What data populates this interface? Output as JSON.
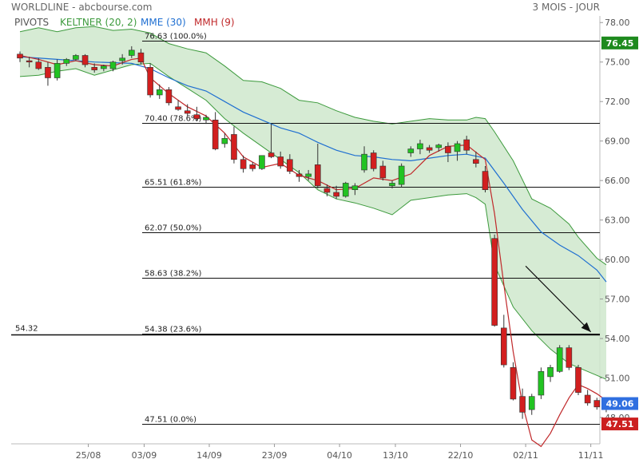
{
  "header": {
    "left_title": "WORLDLINE - abcbourse.com",
    "right_title": "3 MOIS - JOUR"
  },
  "legend": [
    {
      "label": "PIVOTS",
      "color": "#555555"
    },
    {
      "label": "KELTNER (20, 2)",
      "color": "#3c9a3c"
    },
    {
      "label": "MME (30)",
      "color": "#1f6fd1"
    },
    {
      "label": "MMH (9)",
      "color": "#c0282a"
    }
  ],
  "colors": {
    "up": "#22c322",
    "down": "#d21f1f",
    "keltner_fill": "#cfe8cc",
    "keltner_line": "#3c9a3c",
    "mme": "#1f6fd1",
    "mmh": "#c0282a",
    "current_price_bg": "#1e8a1e",
    "close_bg": "#2f6fe0",
    "low_bg": "#cc1f1f"
  },
  "chart_data": {
    "type": "candlestick",
    "y_range": [
      46.0,
      78.5
    ],
    "y_ticks": [
      "78.00",
      "75.00",
      "72.00",
      "69.00",
      "66.00",
      "63.00",
      "60.00",
      "57.00",
      "54.00",
      "51.00",
      "48.00"
    ],
    "x_labels": [
      "25/08",
      "03/09",
      "14/09",
      "23/09",
      "04/10",
      "13/10",
      "22/10",
      "02/11",
      "11/11"
    ],
    "candles": [
      {
        "o": 75.6,
        "h": 75.8,
        "l": 75.0,
        "c": 75.3
      },
      {
        "o": 75.1,
        "h": 75.4,
        "l": 74.6,
        "c": 75.0
      },
      {
        "o": 75.0,
        "h": 75.3,
        "l": 74.4,
        "c": 74.5
      },
      {
        "o": 74.6,
        "h": 75.0,
        "l": 73.2,
        "c": 73.8
      },
      {
        "o": 73.8,
        "h": 75.2,
        "l": 73.6,
        "c": 74.9
      },
      {
        "o": 74.9,
        "h": 75.3,
        "l": 74.7,
        "c": 75.2
      },
      {
        "o": 75.2,
        "h": 75.6,
        "l": 75.1,
        "c": 75.5
      },
      {
        "o": 75.5,
        "h": 75.6,
        "l": 74.6,
        "c": 74.8
      },
      {
        "o": 74.6,
        "h": 74.9,
        "l": 74.2,
        "c": 74.4
      },
      {
        "o": 74.5,
        "h": 74.8,
        "l": 74.3,
        "c": 74.7
      },
      {
        "o": 74.5,
        "h": 75.1,
        "l": 74.3,
        "c": 75.0
      },
      {
        "o": 75.1,
        "h": 75.6,
        "l": 74.8,
        "c": 75.3
      },
      {
        "o": 75.5,
        "h": 76.2,
        "l": 75.3,
        "c": 75.9
      },
      {
        "o": 75.7,
        "h": 76.0,
        "l": 74.8,
        "c": 75.0
      },
      {
        "o": 74.6,
        "h": 74.9,
        "l": 72.3,
        "c": 72.5
      },
      {
        "o": 72.5,
        "h": 73.3,
        "l": 72.2,
        "c": 72.9
      },
      {
        "o": 72.9,
        "h": 73.1,
        "l": 71.7,
        "c": 71.9
      },
      {
        "o": 71.6,
        "h": 72.1,
        "l": 71.3,
        "c": 71.4
      },
      {
        "o": 71.3,
        "h": 71.8,
        "l": 70.9,
        "c": 71.1
      },
      {
        "o": 71.0,
        "h": 71.6,
        "l": 70.5,
        "c": 70.7
      },
      {
        "o": 70.6,
        "h": 71.0,
        "l": 70.3,
        "c": 70.8
      },
      {
        "o": 70.6,
        "h": 71.2,
        "l": 68.3,
        "c": 68.4
      },
      {
        "o": 68.8,
        "h": 69.6,
        "l": 68.5,
        "c": 69.2
      },
      {
        "o": 69.5,
        "h": 70.1,
        "l": 67.3,
        "c": 67.6
      },
      {
        "o": 67.6,
        "h": 67.9,
        "l": 66.6,
        "c": 66.9
      },
      {
        "o": 67.2,
        "h": 67.4,
        "l": 66.7,
        "c": 66.9
      },
      {
        "o": 66.9,
        "h": 67.9,
        "l": 66.8,
        "c": 67.9
      },
      {
        "o": 68.1,
        "h": 70.3,
        "l": 67.7,
        "c": 67.8
      },
      {
        "o": 67.8,
        "h": 68.2,
        "l": 66.9,
        "c": 67.1
      },
      {
        "o": 67.6,
        "h": 68.0,
        "l": 66.5,
        "c": 66.7
      },
      {
        "o": 66.5,
        "h": 66.8,
        "l": 65.9,
        "c": 66.3
      },
      {
        "o": 66.3,
        "h": 66.8,
        "l": 66.0,
        "c": 66.5
      },
      {
        "o": 67.2,
        "h": 68.8,
        "l": 65.4,
        "c": 65.6
      },
      {
        "o": 65.4,
        "h": 65.7,
        "l": 64.8,
        "c": 65.1
      },
      {
        "o": 65.1,
        "h": 65.6,
        "l": 64.6,
        "c": 64.8
      },
      {
        "o": 64.8,
        "h": 65.9,
        "l": 64.7,
        "c": 65.8
      },
      {
        "o": 65.3,
        "h": 65.8,
        "l": 64.9,
        "c": 65.6
      },
      {
        "o": 66.8,
        "h": 68.6,
        "l": 66.6,
        "c": 68.0
      },
      {
        "o": 68.1,
        "h": 68.3,
        "l": 66.7,
        "c": 66.9
      },
      {
        "o": 67.1,
        "h": 67.5,
        "l": 66.0,
        "c": 66.2
      },
      {
        "o": 65.6,
        "h": 66.0,
        "l": 65.4,
        "c": 65.8
      },
      {
        "o": 65.7,
        "h": 67.3,
        "l": 65.5,
        "c": 67.1
      },
      {
        "o": 68.1,
        "h": 68.6,
        "l": 67.8,
        "c": 68.4
      },
      {
        "o": 68.4,
        "h": 69.1,
        "l": 68.0,
        "c": 68.8
      },
      {
        "o": 68.5,
        "h": 68.7,
        "l": 68.1,
        "c": 68.3
      },
      {
        "o": 68.5,
        "h": 68.8,
        "l": 68.2,
        "c": 68.7
      },
      {
        "o": 68.6,
        "h": 68.9,
        "l": 67.4,
        "c": 68.1
      },
      {
        "o": 68.2,
        "h": 69.0,
        "l": 67.5,
        "c": 68.8
      },
      {
        "o": 69.1,
        "h": 69.4,
        "l": 68.0,
        "c": 68.3
      },
      {
        "o": 67.6,
        "h": 68.2,
        "l": 67.0,
        "c": 67.3
      },
      {
        "o": 66.7,
        "h": 67.1,
        "l": 65.1,
        "c": 65.3
      },
      {
        "o": 61.6,
        "h": 61.9,
        "l": 54.9,
        "c": 55.0
      },
      {
        "o": 54.8,
        "h": 55.8,
        "l": 51.8,
        "c": 52.0
      },
      {
        "o": 51.8,
        "h": 52.2,
        "l": 49.3,
        "c": 49.4
      },
      {
        "o": 49.6,
        "h": 50.2,
        "l": 47.9,
        "c": 48.4
      },
      {
        "o": 48.6,
        "h": 49.8,
        "l": 48.2,
        "c": 49.6
      },
      {
        "o": 49.7,
        "h": 51.8,
        "l": 49.4,
        "c": 51.5
      },
      {
        "o": 51.1,
        "h": 52.0,
        "l": 50.7,
        "c": 51.8
      },
      {
        "o": 51.5,
        "h": 53.5,
        "l": 51.4,
        "c": 53.3
      },
      {
        "o": 53.3,
        "h": 53.5,
        "l": 51.6,
        "c": 51.8
      },
      {
        "o": 51.8,
        "h": 52.0,
        "l": 49.7,
        "c": 49.9
      },
      {
        "o": 49.7,
        "h": 50.1,
        "l": 48.9,
        "c": 49.1
      },
      {
        "o": 49.3,
        "h": 49.5,
        "l": 48.6,
        "c": 48.8
      },
      {
        "o": 48.7,
        "h": 49.2,
        "l": 48.4,
        "c": 49.06
      }
    ],
    "keltner_upper": [
      [
        0,
        77.3
      ],
      [
        2,
        77.6
      ],
      [
        4,
        77.3
      ],
      [
        6,
        77.6
      ],
      [
        8,
        77.7
      ],
      [
        10,
        77.4
      ],
      [
        12,
        77.5
      ],
      [
        14,
        77.2
      ],
      [
        16,
        76.4
      ],
      [
        18,
        76.0
      ],
      [
        20,
        75.7
      ],
      [
        22,
        74.7
      ],
      [
        24,
        73.6
      ],
      [
        26,
        73.5
      ],
      [
        28,
        73.0
      ],
      [
        30,
        72.1
      ],
      [
        32,
        71.9
      ],
      [
        34,
        71.3
      ],
      [
        36,
        70.8
      ],
      [
        38,
        70.5
      ],
      [
        40,
        70.3
      ],
      [
        42,
        70.5
      ],
      [
        44,
        70.7
      ],
      [
        46,
        70.6
      ],
      [
        48,
        70.6
      ],
      [
        49,
        70.8
      ],
      [
        50,
        70.7
      ],
      [
        51,
        69.7
      ],
      [
        53,
        67.5
      ],
      [
        55,
        64.6
      ],
      [
        57,
        63.9
      ],
      [
        59,
        62.7
      ],
      [
        60,
        61.7
      ],
      [
        62,
        60.1
      ],
      [
        63,
        59.6
      ]
    ],
    "keltner_lower": [
      [
        0,
        73.9
      ],
      [
        2,
        74.0
      ],
      [
        4,
        74.3
      ],
      [
        6,
        74.5
      ],
      [
        8,
        74.0
      ],
      [
        10,
        74.4
      ],
      [
        12,
        74.8
      ],
      [
        14,
        74.9
      ],
      [
        16,
        73.9
      ],
      [
        18,
        73.0
      ],
      [
        20,
        72.1
      ],
      [
        22,
        70.7
      ],
      [
        24,
        69.6
      ],
      [
        26,
        68.6
      ],
      [
        28,
        67.6
      ],
      [
        30,
        66.6
      ],
      [
        32,
        65.3
      ],
      [
        34,
        64.6
      ],
      [
        36,
        64.3
      ],
      [
        38,
        63.9
      ],
      [
        40,
        63.4
      ],
      [
        42,
        64.5
      ],
      [
        44,
        64.7
      ],
      [
        46,
        64.9
      ],
      [
        48,
        65.0
      ],
      [
        49,
        64.7
      ],
      [
        50,
        64.2
      ],
      [
        51,
        59.6
      ],
      [
        53,
        56.4
      ],
      [
        55,
        54.6
      ],
      [
        57,
        53.2
      ],
      [
        59,
        52.1
      ],
      [
        61,
        51.5
      ],
      [
        63,
        50.9
      ]
    ],
    "mme": [
      [
        0,
        75.4
      ],
      [
        4,
        75.2
      ],
      [
        8,
        75.0
      ],
      [
        12,
        74.9
      ],
      [
        14,
        74.5
      ],
      [
        16,
        73.8
      ],
      [
        18,
        73.2
      ],
      [
        20,
        72.8
      ],
      [
        22,
        72.0
      ],
      [
        24,
        71.2
      ],
      [
        26,
        70.6
      ],
      [
        28,
        70.0
      ],
      [
        30,
        69.6
      ],
      [
        32,
        68.9
      ],
      [
        34,
        68.3
      ],
      [
        36,
        67.9
      ],
      [
        38,
        67.8
      ],
      [
        40,
        67.6
      ],
      [
        42,
        67.5
      ],
      [
        44,
        67.7
      ],
      [
        46,
        67.9
      ],
      [
        48,
        68.0
      ],
      [
        50,
        67.7
      ],
      [
        52,
        65.8
      ],
      [
        54,
        63.8
      ],
      [
        56,
        62.1
      ],
      [
        58,
        61.1
      ],
      [
        60,
        60.3
      ],
      [
        62,
        59.2
      ],
      [
        63,
        58.3
      ]
    ],
    "mmh": [
      [
        0,
        75.5
      ],
      [
        2,
        75.2
      ],
      [
        4,
        74.8
      ],
      [
        6,
        75.1
      ],
      [
        8,
        74.8
      ],
      [
        10,
        74.7
      ],
      [
        12,
        75.2
      ],
      [
        13,
        75.3
      ],
      [
        14,
        73.8
      ],
      [
        16,
        72.6
      ],
      [
        18,
        71.6
      ],
      [
        20,
        70.9
      ],
      [
        22,
        69.6
      ],
      [
        24,
        67.8
      ],
      [
        26,
        67.0
      ],
      [
        28,
        67.3
      ],
      [
        30,
        66.4
      ],
      [
        32,
        66.0
      ],
      [
        34,
        65.3
      ],
      [
        36,
        65.4
      ],
      [
        38,
        66.2
      ],
      [
        40,
        66.0
      ],
      [
        42,
        66.5
      ],
      [
        44,
        67.9
      ],
      [
        46,
        68.6
      ],
      [
        48,
        68.7
      ],
      [
        50,
        67.6
      ],
      [
        51,
        63.5
      ],
      [
        52,
        58.1
      ],
      [
        53,
        53.0
      ],
      [
        54,
        49.0
      ],
      [
        55,
        46.3
      ],
      [
        56,
        45.8
      ],
      [
        57,
        46.8
      ],
      [
        58,
        48.2
      ],
      [
        59,
        49.5
      ],
      [
        60,
        50.5
      ],
      [
        61,
        50.2
      ],
      [
        62,
        49.8
      ],
      [
        63,
        49.3
      ]
    ],
    "fib_levels": [
      {
        "value": 76.63,
        "label": "76.63  (100.0%)"
      },
      {
        "value": 70.4,
        "label": "70.40  (78.6%)"
      },
      {
        "value": 65.51,
        "label": "65.51  (61.8%)"
      },
      {
        "value": 62.07,
        "label": "62.07  (50.0%)"
      },
      {
        "value": 58.63,
        "label": "58.63  (38.2%)"
      },
      {
        "value": 54.38,
        "label": "54.38  (23.6%)"
      },
      {
        "value": 47.51,
        "label": "47.51  (0.0%)"
      }
    ],
    "pivot": {
      "value": 54.32,
      "label": "54.32"
    },
    "arrow": {
      "from": [
        54,
        59.5
      ],
      "to": [
        61,
        54.5
      ]
    },
    "price_badges": [
      {
        "value": 76.45,
        "label": "76.45",
        "bg": "#1e8a1e"
      },
      {
        "value": 49.06,
        "label": "49.06",
        "bg": "#2f6fe0"
      },
      {
        "value": 47.51,
        "label": "47.51",
        "bg": "#cc1f1f"
      }
    ]
  }
}
